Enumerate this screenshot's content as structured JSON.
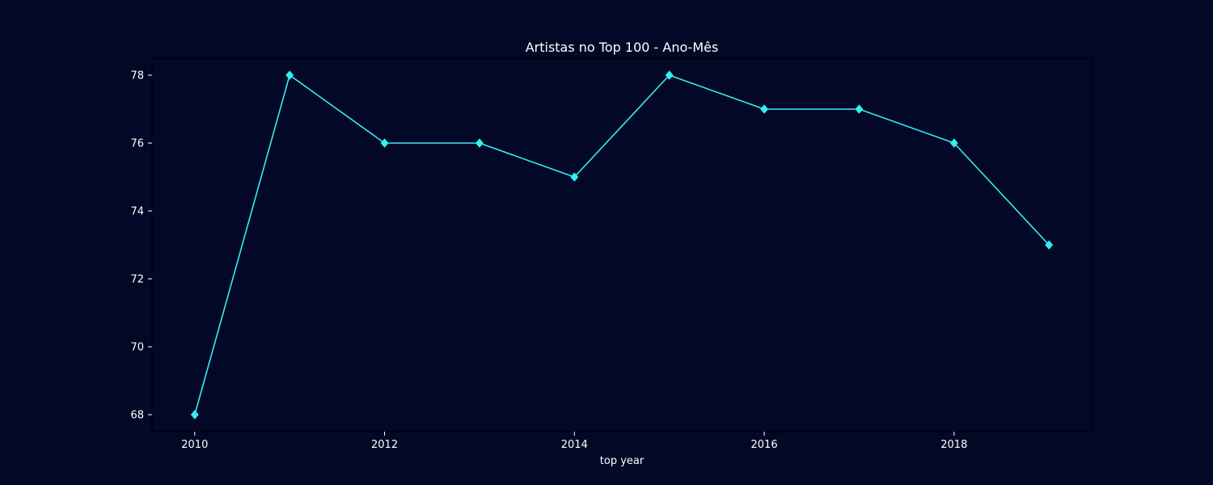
{
  "colors": {
    "background": "#020826",
    "axes": "#000000",
    "text": "#ffffff",
    "series": "#33f0f0"
  },
  "chart_data": {
    "type": "line",
    "title": "Artistas no Top 100 - Ano-Mês",
    "xlabel": "top year",
    "ylabel": "",
    "x": [
      2010,
      2011,
      2012,
      2013,
      2014,
      2015,
      2016,
      2017,
      2018,
      2019
    ],
    "series": [
      {
        "values": [
          68,
          78,
          76,
          76,
          75,
          78,
          77,
          77,
          76,
          73
        ],
        "marker": "diamond"
      }
    ],
    "xlim": [
      2009.55,
      2019.45
    ],
    "ylim": [
      67.5,
      78.5
    ],
    "xticks": [
      2010,
      2012,
      2014,
      2016,
      2018
    ],
    "yticks": [
      68,
      70,
      72,
      74,
      76,
      78
    ],
    "grid": false,
    "legend": "none"
  }
}
